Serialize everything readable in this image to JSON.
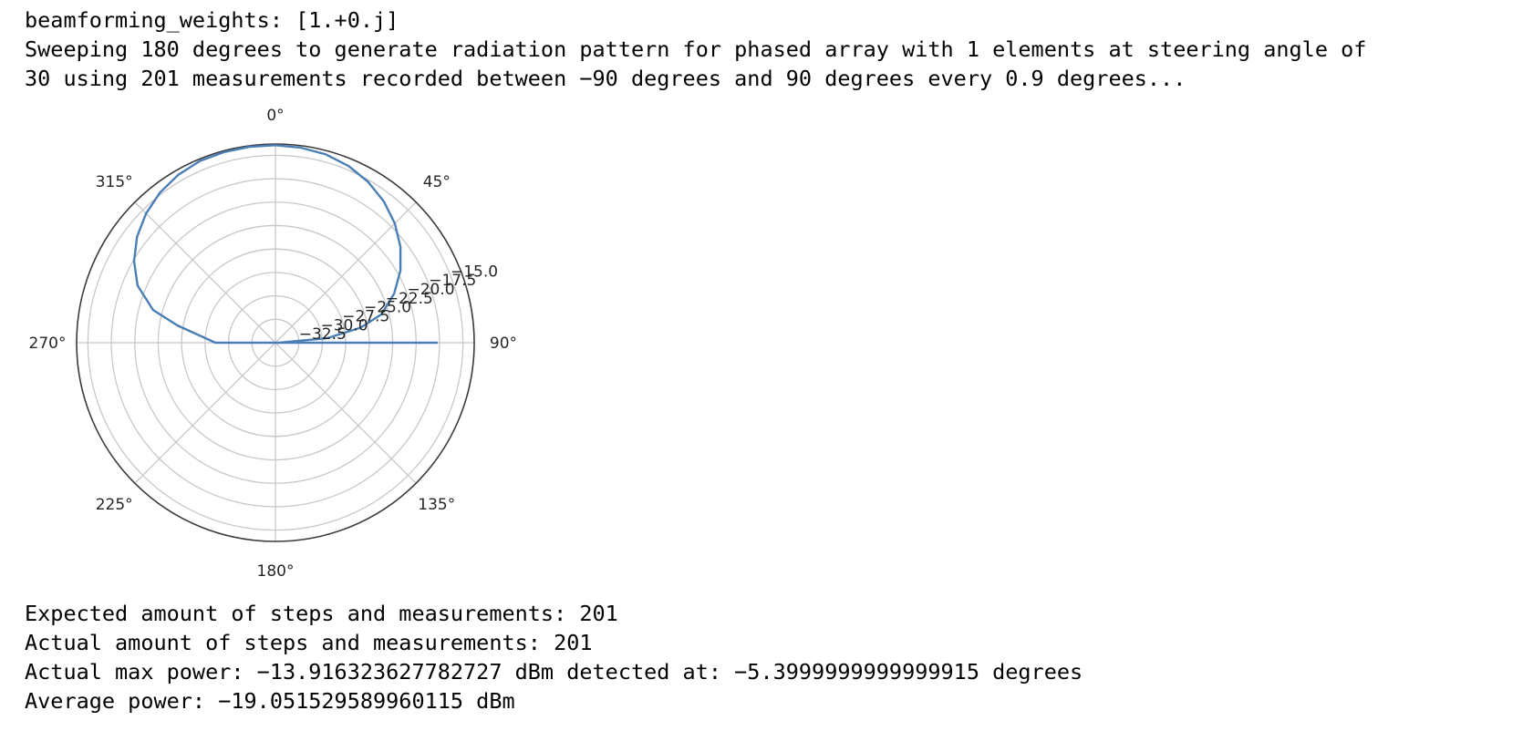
{
  "output": {
    "weights_line": "beamforming_weights: [1.+0.j]",
    "sweep_line_1": "Sweeping 180 degrees to generate radiation pattern for phased array with 1 elements at steering angle of",
    "sweep_line_2": "30 using 201 measurements recorded between −90 degrees and 90 degrees every 0.9 degrees...",
    "expected_line": "Expected amount of steps and measurements: 201",
    "actual_steps_line": "Actual amount of steps and measurements: 201",
    "max_power_line": "Actual max power: −13.916323627782727 dBm detected at: −5.3999999999999915 degrees",
    "average_line": "Average power: −19.051529589960115 dBm"
  },
  "chart_data": {
    "type": "polar-line",
    "theta_direction": "clockwise",
    "theta_zero": "top",
    "angle_tick_labels": [
      "0°",
      "45°",
      "90°",
      "135°",
      "180°",
      "225°",
      "270°",
      "315°"
    ],
    "angle_ticks_deg": [
      0,
      45,
      90,
      135,
      180,
      225,
      270,
      315
    ],
    "radial_tick_labels": [
      "−32.5",
      "−30.0",
      "−27.5",
      "−25.0",
      "−22.5",
      "−20.0",
      "−17.5",
      "−15.0"
    ],
    "radial_ticks": [
      -32.5,
      -30.0,
      -27.5,
      -25.0,
      -22.5,
      -20.0,
      -17.5,
      -15.0
    ],
    "rlim": [
      -35.0,
      -13.8
    ],
    "radial_label_angle_deg": 67.5,
    "grid": true,
    "series_color": "#4a7eb5",
    "series": [
      {
        "theta_deg": [
          90,
          -90,
          -80,
          -75,
          -67.5,
          -60,
          -52.5,
          -45,
          -37.5,
          -30,
          -22.5,
          -15,
          -7.5,
          0,
          7.5,
          15,
          22.5,
          30,
          37.5,
          45,
          52.5,
          60,
          67.5,
          75,
          80,
          85,
          90
        ],
        "r": [
          -17.7,
          -28.6,
          -24.4,
          -21.5,
          -19.1,
          -17.6,
          -16.4,
          -15.5,
          -14.8,
          -14.3,
          -14.0,
          -13.94,
          -13.92,
          -13.93,
          -14.02,
          -14.2,
          -14.6,
          -15.2,
          -16.0,
          -17.0,
          -18.2,
          -19.6,
          -21.3,
          -23.3,
          -25.8,
          -29.5,
          -34.6
        ]
      }
    ]
  }
}
